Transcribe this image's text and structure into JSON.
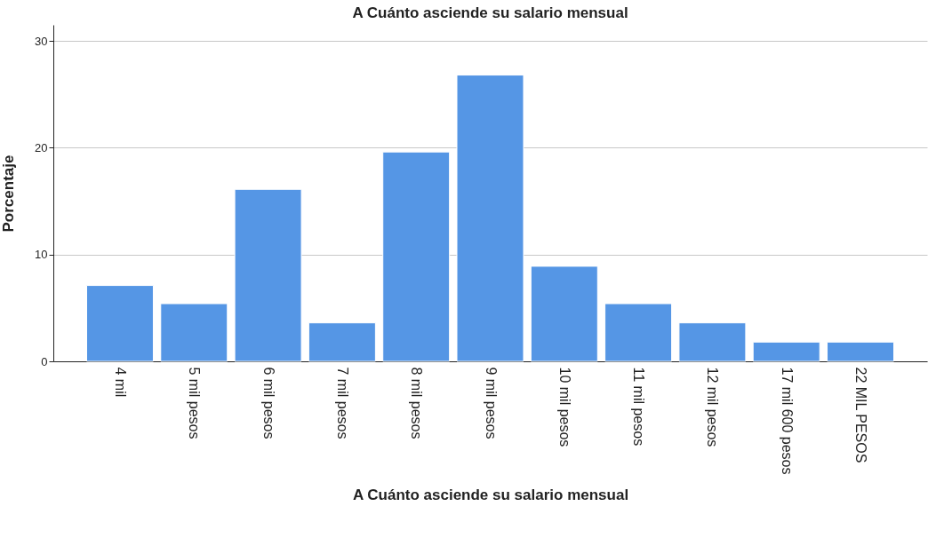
{
  "chart_data": {
    "type": "bar",
    "title": "A Cuánto asciende su salario mensual",
    "xlabel": "A Cuánto asciende su salario mensual",
    "ylabel": "Porcentaje",
    "categories": [
      "4 mil",
      "5 mil pesos",
      "6 mil pesos",
      "7 mil pesos",
      "8 mil pesos",
      "9 mil pesos",
      "10 mil pesos",
      "11 mil pesos",
      "12 mil pesos",
      "17 mil 600 pesos",
      "22 MIL PESOS"
    ],
    "values": [
      7.1,
      5.4,
      16.1,
      3.6,
      19.6,
      26.8,
      8.9,
      5.4,
      3.6,
      1.8,
      1.8
    ],
    "color": "#5596e5",
    "ylim": [
      0,
      31.5
    ],
    "yticks": [
      0,
      10,
      20,
      30
    ],
    "grid": "y"
  }
}
